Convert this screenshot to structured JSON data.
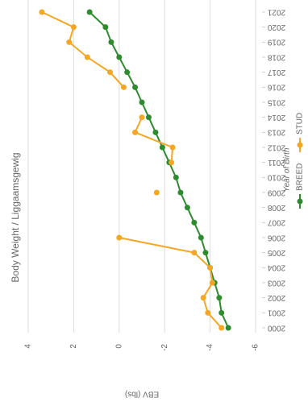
{
  "chart_data": {
    "type": "line",
    "title": "Body Weight / Liggaamsgewig",
    "x_label": "Year of Birth",
    "y_label": "EBV (lbs)",
    "x": [
      2000,
      2001,
      2002,
      2003,
      2004,
      2005,
      2006,
      2007,
      2008,
      2009,
      2010,
      2011,
      2012,
      2013,
      2014,
      2015,
      2016,
      2017,
      2018,
      2019,
      2020,
      2021
    ],
    "series": [
      {
        "name": "BREED",
        "color": "#2e8b2e",
        "values": [
          -4.8,
          -4.5,
          -4.4,
          -4.2,
          -4.0,
          -3.8,
          -3.6,
          -3.3,
          -3.0,
          -2.7,
          -2.5,
          -2.2,
          -1.9,
          -1.6,
          -1.3,
          -1.0,
          -0.7,
          -0.35,
          0,
          0.35,
          0.6,
          1.3
        ]
      },
      {
        "name": "STUD",
        "color": "#f5a623",
        "values": [
          -4.5,
          -3.9,
          -3.7,
          -4.1,
          -4.0,
          -3.3,
          0,
          null,
          null,
          -1.65,
          null,
          -2.3,
          -2.35,
          -0.7,
          -1.0,
          null,
          -0.2,
          0.4,
          1.4,
          2.2,
          2.0,
          3.4
        ]
      }
    ],
    "xlim": [
      2000,
      2021
    ],
    "xticks": [
      2000,
      2001,
      2002,
      2003,
      2004,
      2005,
      2006,
      2007,
      2008,
      2009,
      2010,
      2011,
      2012,
      2013,
      2014,
      2015,
      2016,
      2017,
      2018,
      2019,
      2020,
      2021
    ],
    "ylim": [
      -6,
      4
    ],
    "yticks": [
      -6,
      -4,
      -2,
      0,
      2,
      4
    ],
    "grid": true,
    "legend": "bottom"
  }
}
